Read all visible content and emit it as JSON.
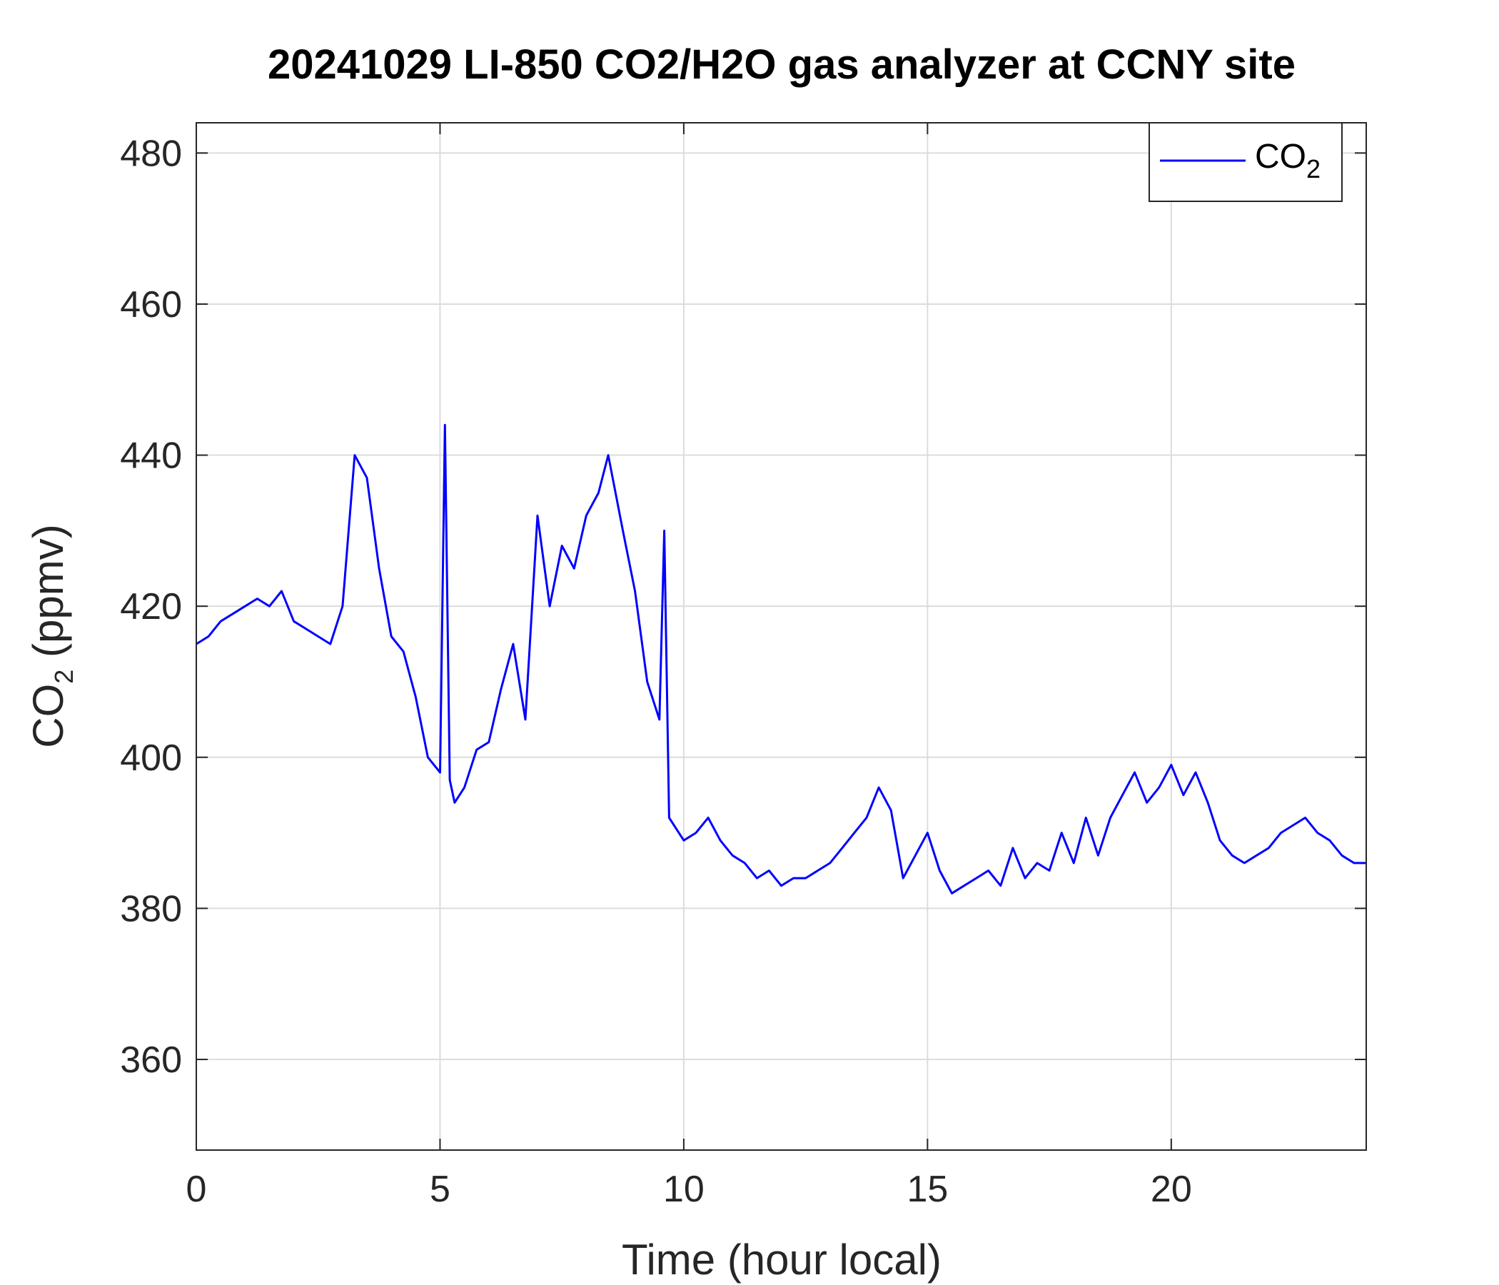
{
  "chart_data": {
    "type": "line",
    "title": "20241029 LI-850 CO2/H2O gas analyzer at CCNY site",
    "xlabel": "Time (hour local)",
    "ylabel": {
      "base": "CO",
      "subscript": "2",
      "rest": " (ppmv)"
    },
    "xlim": [
      0,
      24
    ],
    "ylim": [
      348,
      484
    ],
    "xticks": [
      0,
      5,
      10,
      15,
      20
    ],
    "yticks": [
      360,
      380,
      400,
      420,
      440,
      460,
      480
    ],
    "grid": true,
    "legend_position": "top-right",
    "series": [
      {
        "name": {
          "base": "CO",
          "subscript": "2"
        },
        "color": "#0000ff",
        "x": [
          0.0,
          0.25,
          0.5,
          0.75,
          1.0,
          1.25,
          1.5,
          1.75,
          2.0,
          2.25,
          2.5,
          2.75,
          3.0,
          3.25,
          3.5,
          3.75,
          4.0,
          4.25,
          4.5,
          4.75,
          5.0,
          5.1,
          5.2,
          5.3,
          5.5,
          5.75,
          6.0,
          6.25,
          6.5,
          6.75,
          7.0,
          7.25,
          7.5,
          7.75,
          8.0,
          8.25,
          8.45,
          8.75,
          9.0,
          9.25,
          9.5,
          9.6,
          9.7,
          10.0,
          10.25,
          10.5,
          10.75,
          11.0,
          11.25,
          11.5,
          11.75,
          12.0,
          12.25,
          12.5,
          12.75,
          13.0,
          13.25,
          13.5,
          13.75,
          14.0,
          14.25,
          14.5,
          14.75,
          15.0,
          15.25,
          15.5,
          15.75,
          16.0,
          16.25,
          16.5,
          16.75,
          17.0,
          17.25,
          17.5,
          17.75,
          18.0,
          18.25,
          18.5,
          18.75,
          19.0,
          19.25,
          19.5,
          19.75,
          20.0,
          20.25,
          20.5,
          20.75,
          21.0,
          21.25,
          21.5,
          21.75,
          22.0,
          22.25,
          22.5,
          22.75,
          23.0,
          23.25,
          23.5,
          23.75,
          24.0
        ],
        "y": [
          415,
          416,
          418,
          419,
          420,
          421,
          420,
          422,
          418,
          417,
          416,
          415,
          420,
          440,
          437,
          425,
          416,
          414,
          408,
          400,
          398,
          444,
          397,
          394,
          396,
          401,
          402,
          409,
          415,
          405,
          432,
          420,
          428,
          425,
          432,
          435,
          440,
          430,
          422,
          410,
          405,
          430,
          392,
          389,
          390,
          392,
          389,
          387,
          386,
          384,
          385,
          383,
          384,
          384,
          385,
          386,
          388,
          390,
          392,
          396,
          393,
          384,
          387,
          390,
          385,
          382,
          383,
          384,
          385,
          383,
          388,
          384,
          386,
          385,
          390,
          386,
          392,
          387,
          392,
          395,
          398,
          394,
          396,
          399,
          395,
          398,
          394,
          389,
          387,
          386,
          387,
          388,
          390,
          391,
          392,
          390,
          389,
          387,
          386,
          386
        ]
      }
    ]
  }
}
